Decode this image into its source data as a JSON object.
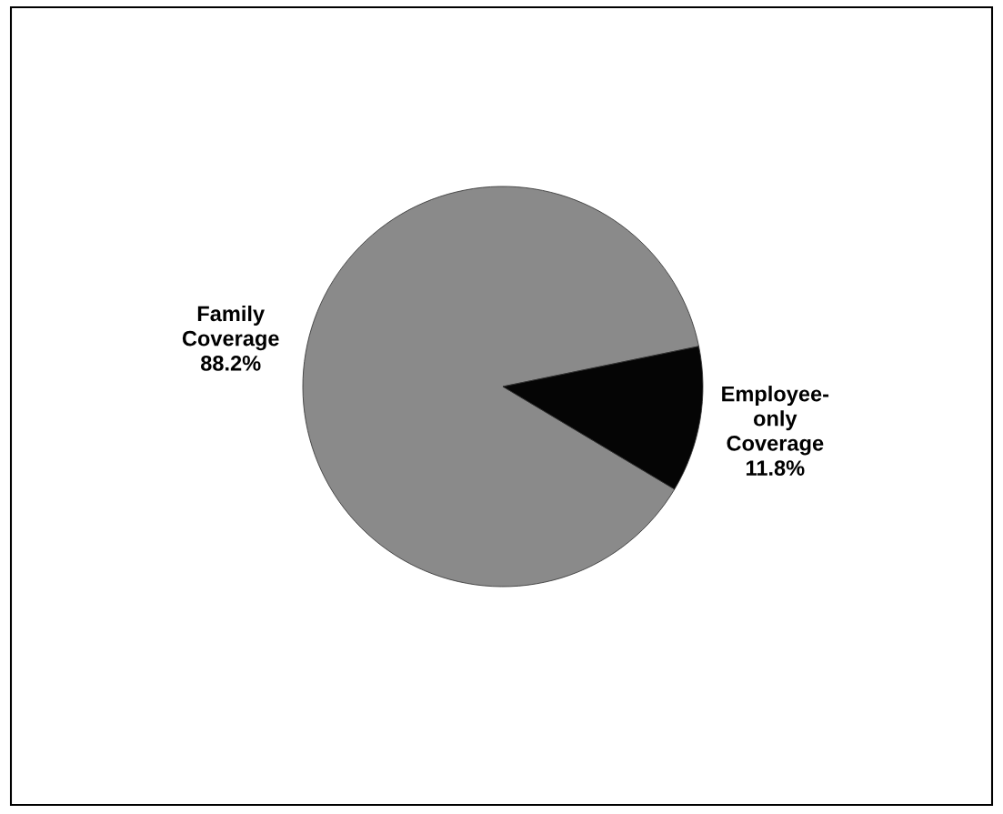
{
  "chart_data": {
    "type": "pie",
    "categories": [
      "Family\nCoverage",
      "Employee-\nonly\nCoverage"
    ],
    "values": [
      88.2,
      11.8
    ],
    "colors": [
      "#8a8a8a",
      "#050505"
    ],
    "value_labels": [
      "88.2%",
      "11.8%"
    ]
  }
}
